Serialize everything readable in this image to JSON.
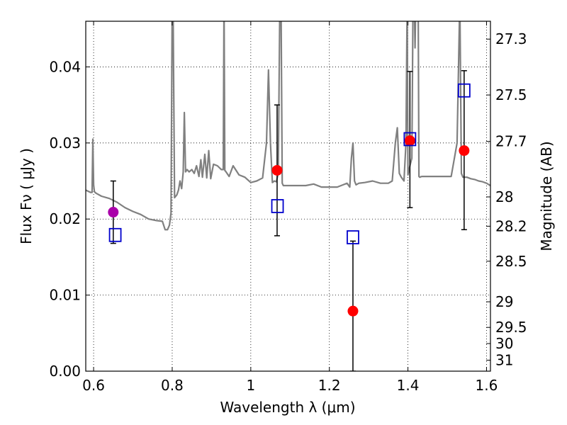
{
  "chart_data": {
    "type": "scatter",
    "title": "",
    "xlabel": "Wavelength  λ (μm)",
    "ylabel": "Flux  Fν  ( μJy )",
    "y2label": "Magnitude (AB)",
    "xlim": [
      0.58,
      1.61
    ],
    "ylim": [
      0.0,
      0.046
    ],
    "grid": true,
    "legend": "none",
    "x_ticks": [
      {
        "value": 0.6,
        "label": "0.6"
      },
      {
        "value": 0.8,
        "label": "0.8"
      },
      {
        "value": 1.0,
        "label": "1"
      },
      {
        "value": 1.2,
        "label": "1.2"
      },
      {
        "value": 1.4,
        "label": "1.4"
      },
      {
        "value": 1.6,
        "label": "1.6"
      }
    ],
    "y_ticks": [
      {
        "value": 0.0,
        "label": "0.00"
      },
      {
        "value": 0.01,
        "label": "0.01"
      },
      {
        "value": 0.02,
        "label": "0.02"
      },
      {
        "value": 0.03,
        "label": "0.03"
      },
      {
        "value": 0.04,
        "label": "0.04"
      }
    ],
    "y2_ticks": [
      {
        "label": "27.3",
        "mag": 27.3
      },
      {
        "label": "27.5",
        "mag": 27.5
      },
      {
        "label": "27.7",
        "mag": 27.7
      },
      {
        "label": "28",
        "mag": 28.0
      },
      {
        "label": "28.2",
        "mag": 28.2
      },
      {
        "label": "28.5",
        "mag": 28.5
      },
      {
        "label": "29",
        "mag": 29.0
      },
      {
        "label": "29.5",
        "mag": 29.5
      },
      {
        "label": "30",
        "mag": 30.0
      },
      {
        "label": "31",
        "mag": 31.0
      }
    ],
    "series": [
      {
        "kind": "line",
        "color": "#808080",
        "x": [
          0.58,
          0.592,
          0.596,
          0.598,
          0.6,
          0.602,
          0.606,
          0.62,
          0.64,
          0.66,
          0.68,
          0.7,
          0.72,
          0.74,
          0.76,
          0.775,
          0.782,
          0.788,
          0.793,
          0.797,
          0.8,
          0.802,
          0.806,
          0.812,
          0.816,
          0.82,
          0.824,
          0.828,
          0.831,
          0.834,
          0.838,
          0.843,
          0.85,
          0.856,
          0.862,
          0.868,
          0.873,
          0.877,
          0.883,
          0.888,
          0.893,
          0.898,
          0.905,
          0.915,
          0.925,
          0.93,
          0.932,
          0.934,
          0.937,
          0.945,
          0.955,
          0.97,
          0.985,
          1.0,
          1.015,
          1.03,
          1.04,
          1.045,
          1.05,
          1.055,
          1.06,
          1.065,
          1.07,
          1.074,
          1.077,
          1.08,
          1.083,
          1.09,
          1.1,
          1.12,
          1.14,
          1.16,
          1.18,
          1.2,
          1.22,
          1.235,
          1.245,
          1.252,
          1.256,
          1.26,
          1.264,
          1.268,
          1.275,
          1.29,
          1.31,
          1.33,
          1.35,
          1.36,
          1.368,
          1.373,
          1.378,
          1.383,
          1.39,
          1.395,
          1.398,
          1.4,
          1.405,
          1.41,
          1.413,
          1.416,
          1.418,
          1.42,
          1.423,
          1.426,
          1.428,
          1.43,
          1.435,
          1.445,
          1.455,
          1.47,
          1.49,
          1.51,
          1.525,
          1.532,
          1.536,
          1.54,
          1.545,
          1.55,
          1.56,
          1.57,
          1.58,
          1.59,
          1.6,
          1.61
        ],
        "y": [
          0.0238,
          0.0235,
          0.0235,
          0.0305,
          0.0245,
          0.0236,
          0.0234,
          0.023,
          0.0227,
          0.0222,
          0.0215,
          0.021,
          0.0206,
          0.02,
          0.0198,
          0.0197,
          0.0186,
          0.0186,
          0.0192,
          0.0208,
          0.049,
          0.049,
          0.0228,
          0.0232,
          0.0238,
          0.025,
          0.024,
          0.0262,
          0.034,
          0.0262,
          0.0265,
          0.0262,
          0.0265,
          0.026,
          0.027,
          0.0256,
          0.0278,
          0.0255,
          0.0285,
          0.0254,
          0.029,
          0.0253,
          0.0272,
          0.027,
          0.0265,
          0.0265,
          0.049,
          0.0264,
          0.0262,
          0.0256,
          0.027,
          0.0258,
          0.0255,
          0.0248,
          0.025,
          0.0254,
          0.03,
          0.0396,
          0.03,
          0.0248,
          0.025,
          0.0249,
          0.026,
          0.049,
          0.049,
          0.0247,
          0.0244,
          0.0244,
          0.0244,
          0.0244,
          0.0244,
          0.0246,
          0.0242,
          0.0242,
          0.0242,
          0.0245,
          0.0247,
          0.0242,
          0.028,
          0.03,
          0.025,
          0.0245,
          0.0247,
          0.0248,
          0.025,
          0.0247,
          0.0247,
          0.025,
          0.03,
          0.032,
          0.026,
          0.0255,
          0.025,
          0.03,
          0.049,
          0.0258,
          0.027,
          0.028,
          0.049,
          0.049,
          0.0425,
          0.049,
          0.049,
          0.049,
          0.0256,
          0.0255,
          0.0256,
          0.0256,
          0.0256,
          0.0256,
          0.0256,
          0.0256,
          0.03,
          0.049,
          0.026,
          0.0255,
          0.0255,
          0.0255,
          0.0253,
          0.0252,
          0.025,
          0.0249,
          0.0247,
          0.0244
        ]
      },
      {
        "kind": "points",
        "name": "",
        "marker": "circle",
        "color": "#ff0000",
        "points": [
          {
            "x": 1.067,
            "y": 0.0264,
            "yerr_low": 0.0178,
            "yerr_high": 0.035
          },
          {
            "x": 1.26,
            "y": 0.0079,
            "yerr_low": 0.0,
            "yerr_high": 0.0171
          },
          {
            "x": 1.405,
            "y": 0.0303,
            "yerr_low": 0.0215,
            "yerr_high": 0.0394
          },
          {
            "x": 1.543,
            "y": 0.029,
            "yerr_low": 0.0186,
            "yerr_high": 0.0395
          }
        ]
      },
      {
        "kind": "points",
        "name": "",
        "marker": "circle",
        "color": "#aa00aa",
        "points": [
          {
            "x": 0.65,
            "y": 0.0209,
            "yerr_low": 0.0168,
            "yerr_high": 0.025
          }
        ]
      },
      {
        "kind": "points",
        "name": "",
        "marker": "open-square",
        "color": "#0000cc",
        "points": [
          {
            "x": 0.655,
            "y": 0.0179
          },
          {
            "x": 1.068,
            "y": 0.0217
          },
          {
            "x": 1.26,
            "y": 0.0176
          },
          {
            "x": 1.405,
            "y": 0.0305
          },
          {
            "x": 1.543,
            "y": 0.0369
          }
        ]
      }
    ]
  }
}
